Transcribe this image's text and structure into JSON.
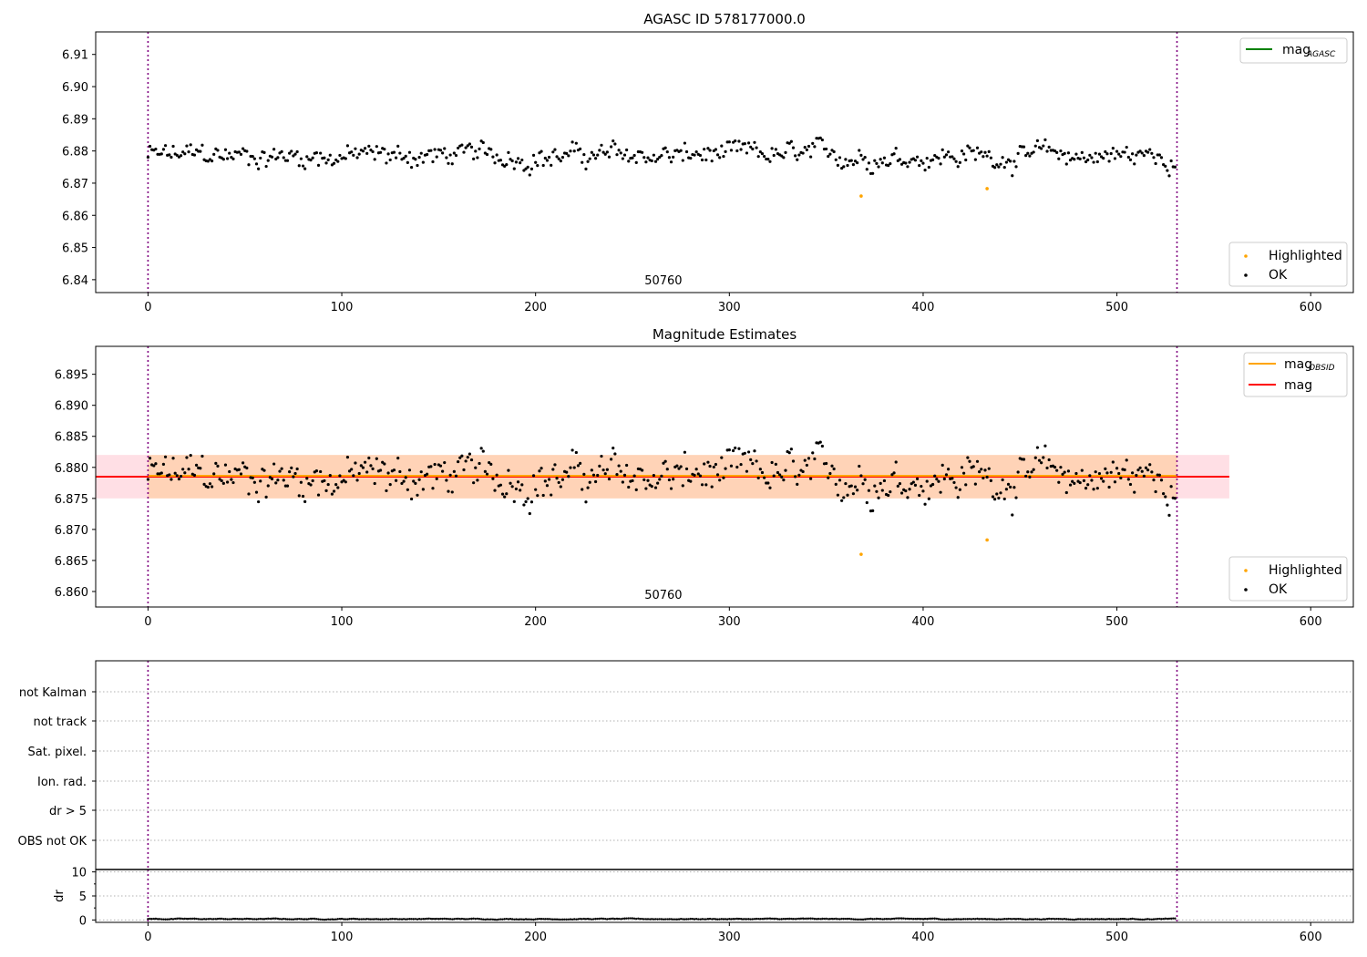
{
  "chart_data": [
    {
      "type": "scatter",
      "title": "AGASC ID 578177000.0",
      "xlim": [
        -27,
        622
      ],
      "ylim": [
        6.836,
        6.917
      ],
      "xticks": [
        0,
        100,
        200,
        300,
        400,
        500,
        600
      ],
      "yticks": [
        6.84,
        6.85,
        6.86,
        6.87,
        6.88,
        6.89,
        6.9,
        6.91
      ],
      "ytick_labels": [
        "6.84",
        "6.85",
        "6.86",
        "6.87",
        "6.88",
        "6.89",
        "6.90",
        "6.91"
      ],
      "vlines": [
        0,
        531
      ],
      "annotation": {
        "text": "50760",
        "x": 265
      },
      "legend_top": {
        "position": "top-right",
        "entries": [
          {
            "label": "mag",
            "sub": "AGASC",
            "color": "#008000"
          }
        ]
      },
      "legend_bottom": {
        "position": "lower-right",
        "entries": [
          {
            "label": "Highlighted",
            "color": "#ffa500"
          },
          {
            "label": "OK",
            "color": "#000000"
          }
        ]
      },
      "highlighted": [
        {
          "x": 368,
          "y": 6.866
        },
        {
          "x": 433,
          "y": 6.8683
        }
      ],
      "ok_series": {
        "name": "OK",
        "n": 531,
        "mean": 6.8785,
        "min": 6.8695,
        "max": 6.8875
      }
    },
    {
      "type": "scatter",
      "title": "Magnitude Estimates",
      "xlim": [
        -27,
        622
      ],
      "ylim": [
        6.8575,
        6.8995
      ],
      "xticks": [
        0,
        100,
        200,
        300,
        400,
        500,
        600
      ],
      "yticks": [
        6.86,
        6.865,
        6.87,
        6.875,
        6.88,
        6.885,
        6.89,
        6.895
      ],
      "ytick_labels": [
        "6.860",
        "6.865",
        "6.870",
        "6.875",
        "6.880",
        "6.885",
        "6.890",
        "6.895"
      ],
      "vlines": [
        0,
        531
      ],
      "annotation": {
        "text": "50760",
        "x": 265
      },
      "mag_line": {
        "value": 6.8785,
        "color": "#ff0000"
      },
      "mag_obsid_line": {
        "value": 6.8785,
        "color": "#ffa500"
      },
      "band": {
        "y0": 6.875,
        "y1": 6.882,
        "x0": -27,
        "x1": 558
      },
      "legend_top": {
        "position": "top-right",
        "entries": [
          {
            "label": "mag",
            "sub": "OBSID",
            "color": "#ffa500"
          },
          {
            "label": "mag",
            "sub": "",
            "color": "#ff0000"
          }
        ]
      },
      "legend_bottom": {
        "position": "lower-right",
        "entries": [
          {
            "label": "Highlighted",
            "color": "#ffa500"
          },
          {
            "label": "OK",
            "color": "#000000"
          }
        ]
      },
      "highlighted": [
        {
          "x": 368,
          "y": 6.866
        },
        {
          "x": 433,
          "y": 6.8683
        }
      ]
    },
    {
      "type": "scatter",
      "title": "",
      "xlim": [
        -27,
        622
      ],
      "xticks": [
        0,
        100,
        200,
        300,
        400,
        500,
        600
      ],
      "vlines": [
        0,
        531
      ],
      "flag_labels": [
        "not Kalman",
        "not track",
        "Sat. pixel.",
        "Ion. rad.",
        "dr > 5",
        "OBS not OK"
      ],
      "dr": {
        "ylabel": "dr",
        "ylim": [
          -0.5,
          10.5
        ],
        "yticks": [
          0,
          5,
          10
        ],
        "ytick_labels": [
          "0",
          "5",
          "10"
        ],
        "n": 531,
        "typical": 0.2
      }
    }
  ]
}
